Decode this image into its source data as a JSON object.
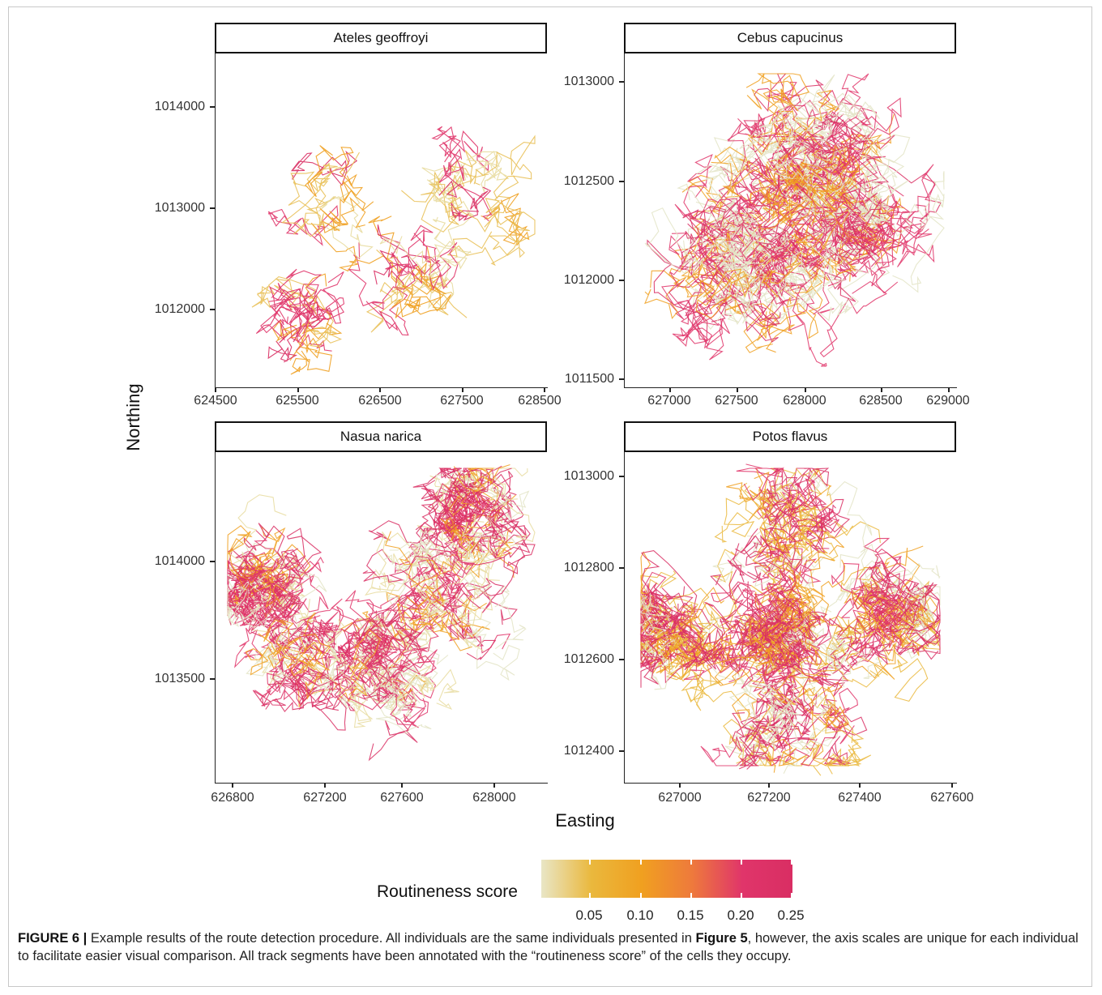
{
  "figure": {
    "axis_title_x": "Easting",
    "axis_title_y": "Northing",
    "legend": {
      "title": "Routineness score",
      "ticks": [
        "0.05",
        "0.10",
        "0.15",
        "0.20",
        "0.25"
      ],
      "colors": [
        "#e9e6c6",
        "#eab83d",
        "#f0a020",
        "#ee7a3c",
        "#e0356a",
        "#d92e63"
      ]
    },
    "caption": {
      "label": "FIGURE 6 |",
      "text1": " Example results of the route detection procedure. All individuals are the same individuals presented in ",
      "ref": "Figure 5",
      "text2": ", however, the axis scales are unique for each individual to facilitate easier visual comparison. All track segments have been annotated with the “routineness score” of the cells they occupy."
    }
  },
  "chart_data": [
    {
      "type": "line",
      "title": "Ateles geoffroyi",
      "x_ticks": [
        "624500",
        "625500",
        "626500",
        "627500",
        "628500"
      ],
      "y_ticks": [
        "1012000",
        "1013000",
        "1014000"
      ],
      "xlim": [
        624500,
        628500
      ],
      "ylim": [
        1011300,
        1014400
      ],
      "color_scale": "routineness score 0.05-0.25"
    },
    {
      "type": "line",
      "title": "Cebus capucinus",
      "x_ticks": [
        "627000",
        "627500",
        "628000",
        "628500",
        "629000"
      ],
      "y_ticks": [
        "1011500",
        "1012000",
        "1012500",
        "1013000"
      ],
      "xlim": [
        626700,
        629000
      ],
      "ylim": [
        1011500,
        1013100
      ],
      "color_scale": "routineness score 0.05-0.25"
    },
    {
      "type": "line",
      "title": "Nasua narica",
      "x_ticks": [
        "626800",
        "627200",
        "627600",
        "628000"
      ],
      "y_ticks": [
        "1013500",
        "1014000"
      ],
      "xlim": [
        626850,
        628200
      ],
      "ylim": [
        1013200,
        1014450
      ],
      "color_scale": "routineness score 0.05-0.25"
    },
    {
      "type": "line",
      "title": "Potos flavus",
      "x_ticks": [
        "627000",
        "627200",
        "627400",
        "627600"
      ],
      "y_ticks": [
        "1012400",
        "1012600",
        "1012800",
        "1013000"
      ],
      "xlim": [
        626900,
        627600
      ],
      "ylim": [
        1012370,
        1013020
      ],
      "color_scale": "routineness score 0.05-0.25"
    }
  ]
}
